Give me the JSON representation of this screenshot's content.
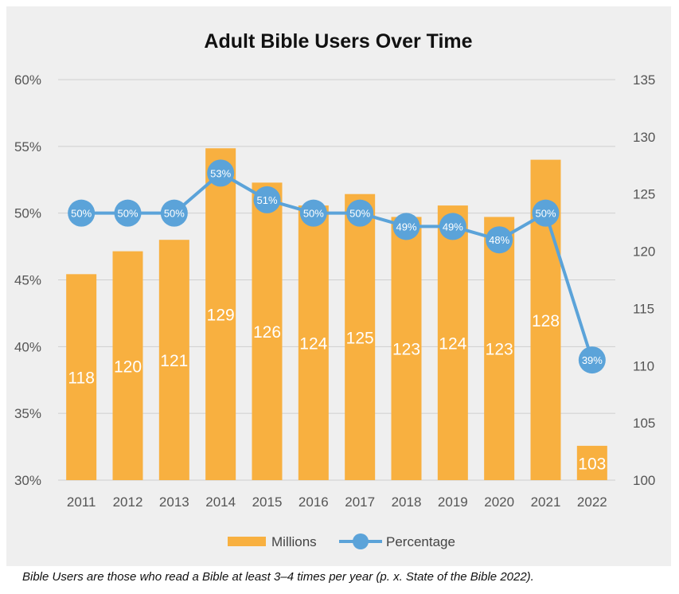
{
  "chart_data": {
    "type": "bar",
    "title": "Adult Bible Users Over Time",
    "categories": [
      "2011",
      "2012",
      "2013",
      "2014",
      "2015",
      "2016",
      "2017",
      "2018",
      "2019",
      "2020",
      "2021",
      "2022"
    ],
    "series": [
      {
        "name": "Millions",
        "type": "bar",
        "axis": "right",
        "values": [
          118,
          120,
          121,
          129,
          126,
          124,
          125,
          123,
          124,
          123,
          128,
          103
        ],
        "labels": [
          "118",
          "120",
          "121",
          "129",
          "126",
          "124",
          "125",
          "123",
          "124",
          "123",
          "128",
          "103"
        ],
        "color": "#f8b040"
      },
      {
        "name": "Percentage",
        "type": "line",
        "axis": "left",
        "values": [
          50,
          50,
          50,
          53,
          51,
          50,
          50,
          49,
          49,
          48,
          50,
          39
        ],
        "labels": [
          "50%",
          "50%",
          "50%",
          "53%",
          "51%",
          "50%",
          "50%",
          "49%",
          "49%",
          "48%",
          "50%",
          "39%"
        ],
        "color": "#5ba3d9"
      }
    ],
    "left_axis": {
      "min": 30,
      "max": 60,
      "ticks": [
        "30%",
        "35%",
        "40%",
        "45%",
        "50%",
        "55%",
        "60%"
      ]
    },
    "right_axis": {
      "min": 100,
      "max": 135,
      "ticks": [
        "100",
        "105",
        "110",
        "115",
        "120",
        "125",
        "130",
        "135"
      ]
    },
    "grid": true,
    "legend": "bottom"
  },
  "caption": "Bible Users are those who read a Bible at least 3–4 times per year (p. x. State of the Bible 2022)."
}
